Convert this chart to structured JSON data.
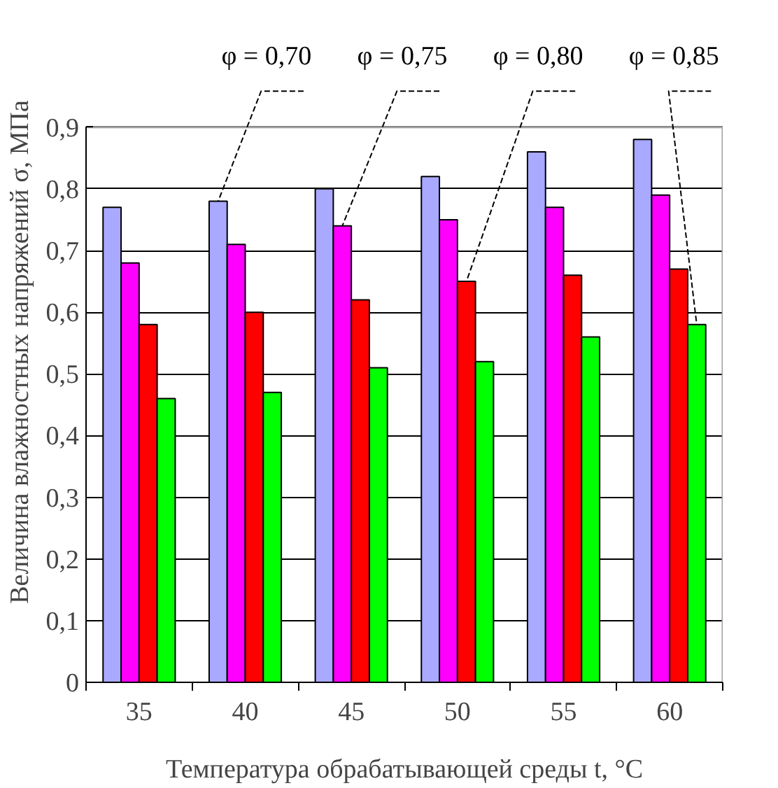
{
  "chart_data": {
    "type": "bar",
    "xlabel": "Температура обрабатывающей среды t, °C",
    "ylabel": "Величина влажностных напряжений σ, МПа",
    "categories": [
      "35",
      "40",
      "45",
      "50",
      "55",
      "60"
    ],
    "series": [
      {
        "name": "φ = 0,70",
        "color": "#a9a9ff",
        "values": [
          0.77,
          0.78,
          0.8,
          0.82,
          0.86,
          0.88
        ]
      },
      {
        "name": "φ = 0,75",
        "color": "#ff00ff",
        "values": [
          0.68,
          0.71,
          0.74,
          0.75,
          0.77,
          0.79
        ]
      },
      {
        "name": "φ = 0,80",
        "color": "#ff0000",
        "values": [
          0.58,
          0.6,
          0.62,
          0.65,
          0.66,
          0.67
        ]
      },
      {
        "name": "φ = 0,85",
        "color": "#00ff00",
        "values": [
          0.46,
          0.47,
          0.51,
          0.52,
          0.56,
          0.58
        ]
      }
    ],
    "ylim": [
      0,
      0.9
    ],
    "yticks": [
      0,
      {
        "value": 0.1,
        "label": "0,1"
      },
      {
        "value": 0.2,
        "label": "0,2"
      },
      {
        "value": 0.3,
        "label": "0,3"
      },
      {
        "value": 0.4,
        "label": "0,4"
      },
      {
        "value": 0.5,
        "label": "0,5"
      },
      {
        "value": 0.6,
        "label": "0,6"
      },
      {
        "value": 0.7,
        "label": "0,7"
      },
      {
        "value": 0.8,
        "label": "0,8"
      },
      {
        "value": 0.9,
        "label": "0,9"
      }
    ],
    "grid": "y",
    "legend": false
  }
}
